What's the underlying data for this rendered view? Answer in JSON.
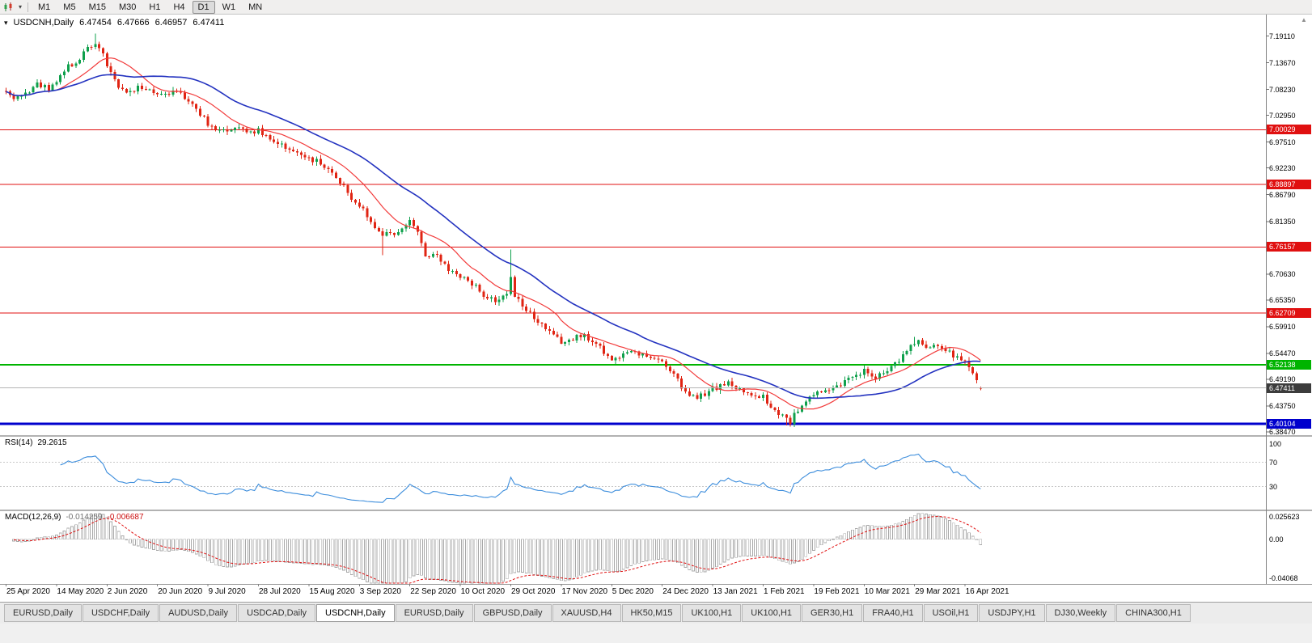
{
  "toolbar": {
    "timeframes": [
      "M1",
      "M5",
      "M15",
      "M30",
      "H1",
      "H4",
      "D1",
      "W1",
      "MN"
    ],
    "active_timeframe": "D1",
    "icons": [
      "chart-type-icon",
      "dropdown-arrow-icon"
    ]
  },
  "chart": {
    "symbol_period": "USDCNH,Daily",
    "ohlc": {
      "open": "6.47454",
      "high": "6.47666",
      "low": "6.46957",
      "close": "6.47411"
    },
    "price_axis_labels": [
      "7.19110",
      "7.13670",
      "7.08230",
      "7.02950",
      "6.97510",
      "6.92230",
      "6.86790",
      "6.81350",
      "6.70630",
      "6.65350",
      "6.59910",
      "6.54470",
      "6.49190",
      "6.43750",
      "6.38470"
    ],
    "hlines": [
      {
        "price": 7.00029,
        "label": "7.00029",
        "color": "#e01010",
        "width": 1,
        "kind": "resistance"
      },
      {
        "price": 6.88897,
        "label": "6.88897",
        "color": "#e01010",
        "width": 1,
        "kind": "resistance"
      },
      {
        "price": 6.76157,
        "label": "6.76157",
        "color": "#e01010",
        "width": 1,
        "kind": "resistance"
      },
      {
        "price": 6.62709,
        "label": "6.62709",
        "color": "#e01010",
        "width": 1,
        "kind": "resistance"
      },
      {
        "price": 6.52138,
        "label": "6.52138",
        "color": "#00b400",
        "width": 2,
        "kind": "support"
      },
      {
        "price": 6.40104,
        "label": "6.40104",
        "color": "#0000cd",
        "width": 3,
        "kind": "support"
      }
    ],
    "bid": {
      "price": 6.47411,
      "label": "6.47411",
      "box_color": "#3c3c3c",
      "line_color": "#b4b4b4"
    },
    "colors": {
      "up": "#0fa04c",
      "down": "#e02413",
      "ma_fast": "#f23b3b",
      "ma_slow": "#2433c0"
    }
  },
  "rsi": {
    "name": "RSI(14)",
    "value": "29.2615",
    "axis_labels": [
      "100",
      "70",
      "30"
    ],
    "levels": [
      70,
      30
    ],
    "color": "#3c8ddc"
  },
  "macd": {
    "name": "MACD(12,26,9)",
    "main_value": "-0.014259",
    "signal_value": "-0.006687",
    "axis_labels": [
      "0.025623",
      "0.00",
      "-0.04068"
    ],
    "range": [
      0.025623,
      -0.04068
    ]
  },
  "date_axis": [
    "25 Apr 2020",
    "14 May 2020",
    "2 Jun 2020",
    "20 Jun 2020",
    "9 Jul 2020",
    "28 Jul 2020",
    "15 Aug 2020",
    "3 Sep 2020",
    "22 Sep 2020",
    "10 Oct 2020",
    "29 Oct 2020",
    "17 Nov 2020",
    "5 Dec 2020",
    "24 Dec 2020",
    "13 Jan 2021",
    "1 Feb 2021",
    "19 Feb 2021",
    "10 Mar 2021",
    "29 Mar 2021",
    "16 Apr 2021"
  ],
  "tabs": {
    "items": [
      "EURUSD,Daily",
      "USDCHF,Daily",
      "AUDUSD,Daily",
      "USDCAD,Daily",
      "USDCNH,Daily",
      "EURUSD,Daily",
      "GBPUSD,Daily",
      "XAUUSD,H4",
      "HK50,M15",
      "UK100,H1",
      "UK100,H1",
      "GER30,H1",
      "FRA40,H1",
      "USOil,H1",
      "USDJPY,H1",
      "DJ30,Weekly",
      "CHINA300,H1"
    ],
    "active_index": 4
  },
  "chart_data": {
    "type": "candlestick",
    "symbol": "USDCNH",
    "timeframe": "Daily",
    "bars": 252,
    "price_range": {
      "top": 7.235,
      "bottom": 6.378
    },
    "last_bar": {
      "open": 6.47454,
      "high": 6.47666,
      "low": 6.46957,
      "close": 6.47411
    },
    "ma_periods": [
      13,
      34
    ],
    "seed": 1337,
    "trend_anchors": [
      [
        0,
        7.082
      ],
      [
        2,
        7.062
      ],
      [
        5,
        7.075
      ],
      [
        8,
        7.094
      ],
      [
        11,
        7.086
      ],
      [
        13,
        7.102
      ],
      [
        16,
        7.128
      ],
      [
        19,
        7.146
      ],
      [
        21,
        7.168
      ],
      [
        23,
        7.178
      ],
      [
        25,
        7.152
      ],
      [
        26,
        7.128
      ],
      [
        29,
        7.088
      ],
      [
        31,
        7.075
      ],
      [
        34,
        7.088
      ],
      [
        37,
        7.08
      ],
      [
        39,
        7.072
      ],
      [
        43,
        7.078
      ],
      [
        46,
        7.068
      ],
      [
        49,
        7.045
      ],
      [
        52,
        7.012
      ],
      [
        54,
        6.995
      ],
      [
        57,
        7.002
      ],
      [
        60,
        7.006
      ],
      [
        63,
        6.995
      ],
      [
        65,
        6.998
      ],
      [
        68,
        6.978
      ],
      [
        71,
        6.97
      ],
      [
        74,
        6.955
      ],
      [
        78,
        6.945
      ],
      [
        81,
        6.93
      ],
      [
        84,
        6.914
      ],
      [
        87,
        6.886
      ],
      [
        89,
        6.862
      ],
      [
        91,
        6.842
      ],
      [
        93,
        6.826
      ],
      [
        95,
        6.8
      ],
      [
        97,
        6.784
      ],
      [
        100,
        6.79
      ],
      [
        102,
        6.8
      ],
      [
        104,
        6.812
      ],
      [
        106,
        6.796
      ],
      [
        108,
        6.745
      ],
      [
        111,
        6.74
      ],
      [
        114,
        6.718
      ],
      [
        117,
        6.7
      ],
      [
        120,
        6.688
      ],
      [
        123,
        6.662
      ],
      [
        126,
        6.655
      ],
      [
        129,
        6.668
      ],
      [
        130,
        6.698
      ],
      [
        131,
        6.662
      ],
      [
        134,
        6.636
      ],
      [
        137,
        6.608
      ],
      [
        140,
        6.585
      ],
      [
        143,
        6.568
      ],
      [
        146,
        6.577
      ],
      [
        149,
        6.583
      ],
      [
        152,
        6.562
      ],
      [
        154,
        6.548
      ],
      [
        156,
        6.532
      ],
      [
        159,
        6.541
      ],
      [
        162,
        6.547
      ],
      [
        165,
        6.536
      ],
      [
        169,
        6.526
      ],
      [
        172,
        6.502
      ],
      [
        175,
        6.462
      ],
      [
        178,
        6.452
      ],
      [
        182,
        6.473
      ],
      [
        186,
        6.483
      ],
      [
        190,
        6.468
      ],
      [
        195,
        6.455
      ],
      [
        198,
        6.424
      ],
      [
        202,
        6.405
      ],
      [
        205,
        6.442
      ],
      [
        208,
        6.462
      ],
      [
        212,
        6.475
      ],
      [
        216,
        6.487
      ],
      [
        219,
        6.497
      ],
      [
        221,
        6.508
      ],
      [
        224,
        6.496
      ],
      [
        227,
        6.508
      ],
      [
        230,
        6.533
      ],
      [
        233,
        6.561
      ],
      [
        235,
        6.567
      ],
      [
        237,
        6.556
      ],
      [
        240,
        6.556
      ],
      [
        242,
        6.548
      ],
      [
        244,
        6.54
      ],
      [
        247,
        6.525
      ],
      [
        249,
        6.5
      ],
      [
        251,
        6.474
      ]
    ],
    "wick_spikes_high": [
      [
        23,
        7.196
      ],
      [
        130,
        6.756
      ],
      [
        234,
        6.578
      ]
    ],
    "wick_spikes_low": [
      [
        97,
        6.745
      ],
      [
        201,
        6.398
      ],
      [
        202,
        6.396
      ],
      [
        203,
        6.399
      ]
    ]
  }
}
